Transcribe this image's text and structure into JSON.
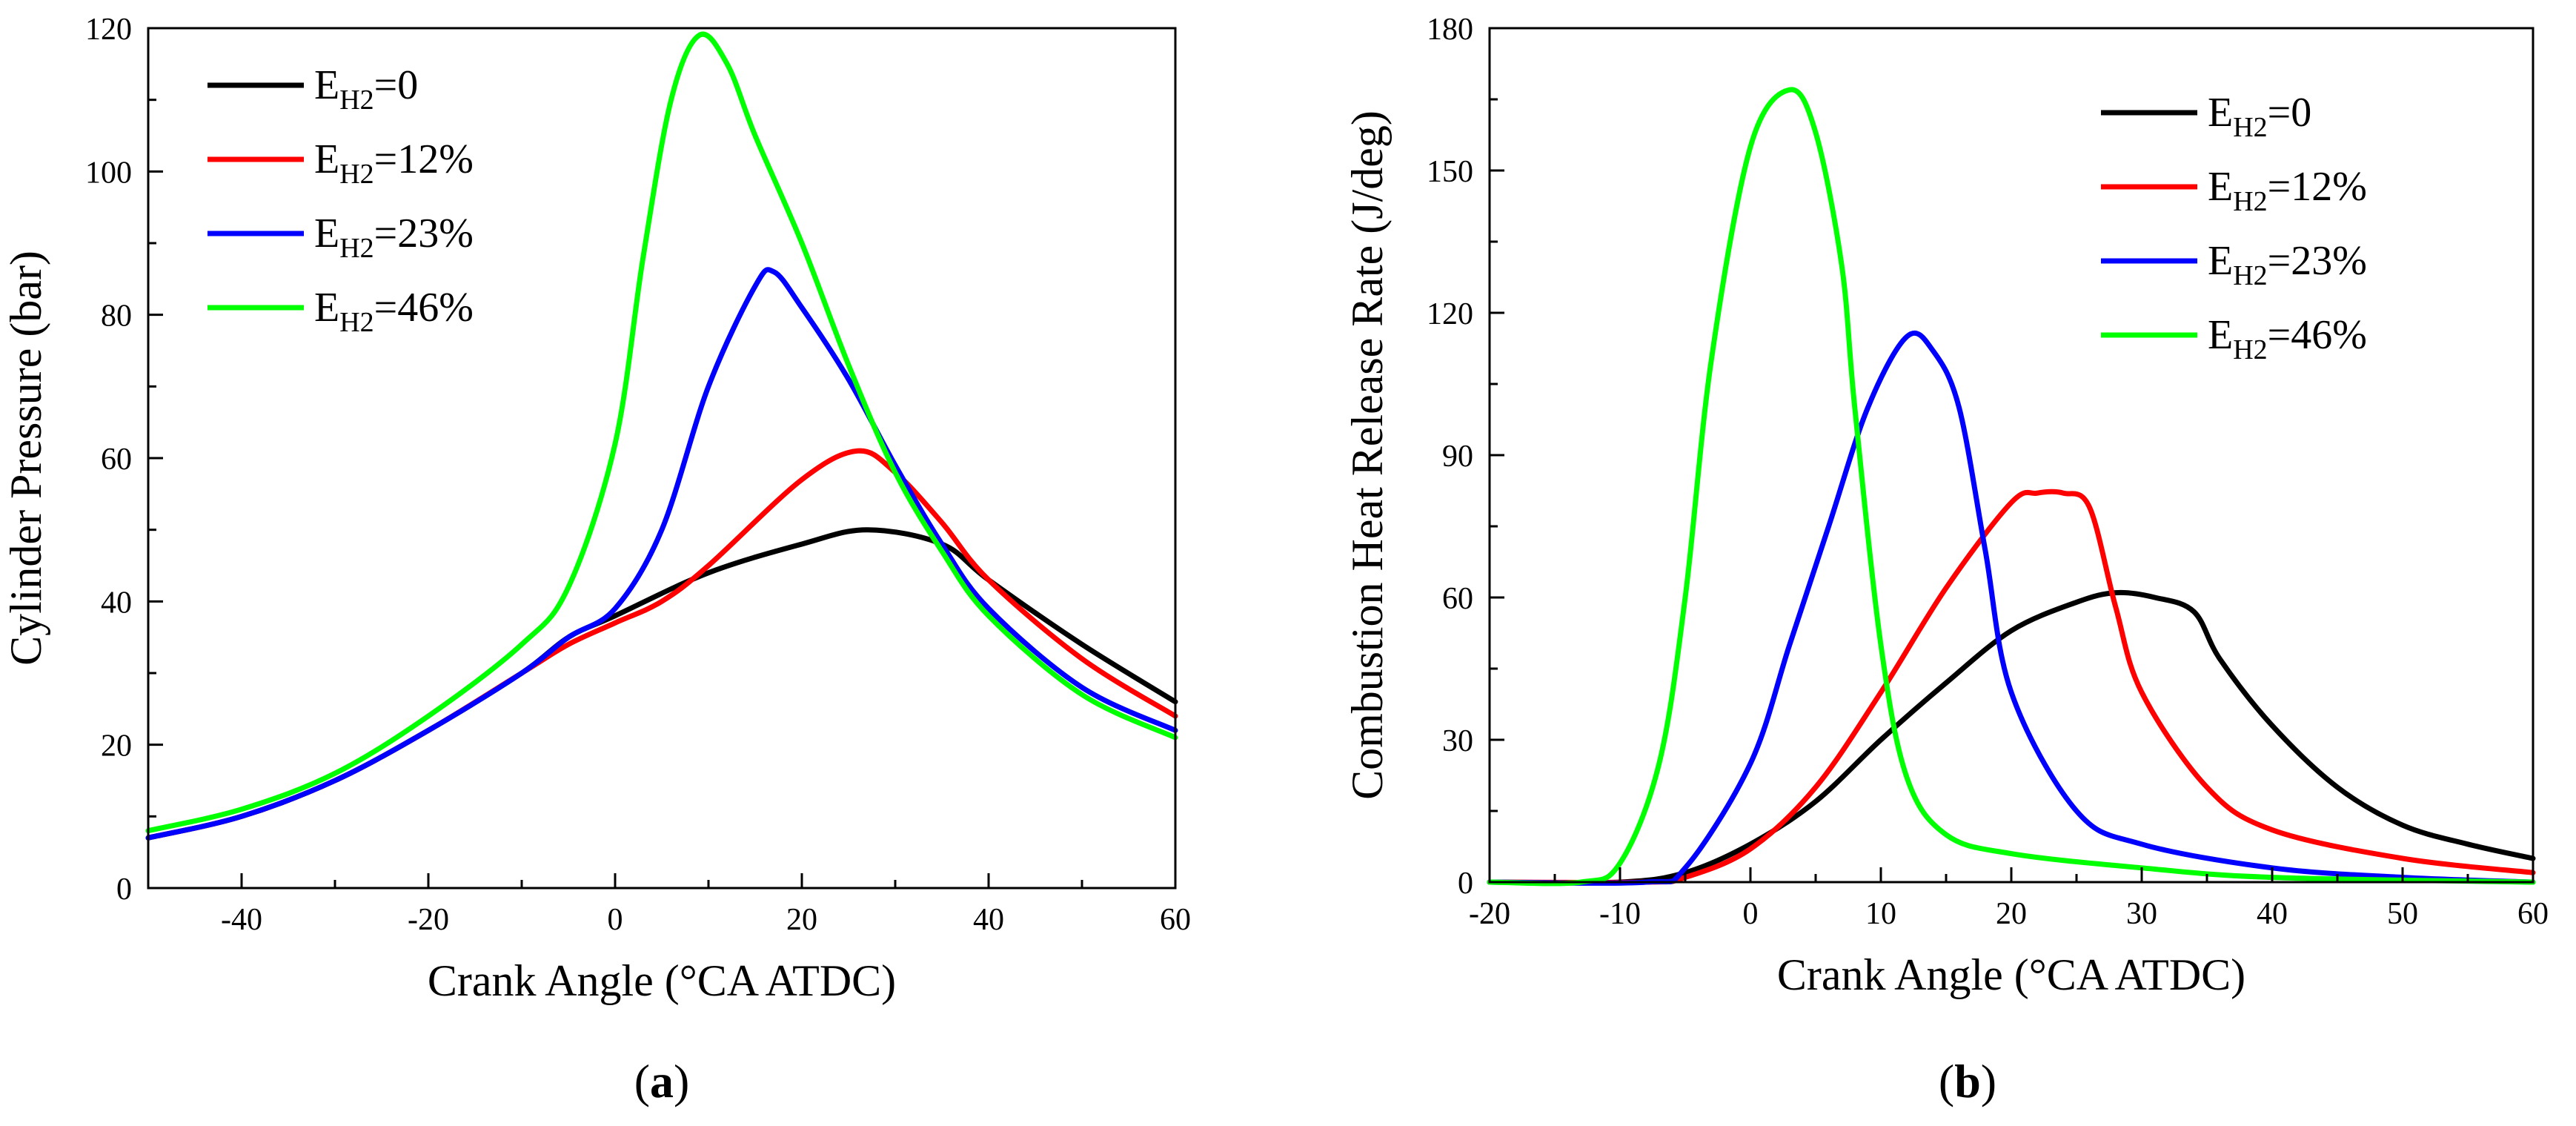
{
  "chart_data": [
    {
      "id": "a",
      "type": "line",
      "panel_label": "a",
      "xlabel": "Crank Angle (°CA ATDC)",
      "ylabel": "Cylinder Pressure (bar)",
      "xlim": [
        -50,
        60
      ],
      "ylim": [
        0,
        120
      ],
      "xticks": [
        -40,
        -20,
        0,
        20,
        40,
        60
      ],
      "yticks": [
        0,
        20,
        40,
        60,
        80,
        100,
        120
      ],
      "legend_position": "top-left",
      "series": [
        {
          "name": "E_H2=0",
          "legend_main": "E",
          "legend_sub": "H2",
          "legend_tail": "=0",
          "color": "#000000",
          "points": [
            [
              -50,
              7
            ],
            [
              -40,
              10
            ],
            [
              -30,
              15
            ],
            [
              -20,
              22
            ],
            [
              -10,
              30
            ],
            [
              -5,
              35
            ],
            [
              0,
              38
            ],
            [
              10,
              44
            ],
            [
              20,
              48
            ],
            [
              27,
              50
            ],
            [
              35,
              48
            ],
            [
              40,
              43
            ],
            [
              50,
              34
            ],
            [
              60,
              26
            ]
          ]
        },
        {
          "name": "E_H2=12%",
          "legend_main": "E",
          "legend_sub": "H2",
          "legend_tail": "=12%",
          "color": "#ff0000",
          "points": [
            [
              -50,
              7
            ],
            [
              -40,
              10
            ],
            [
              -30,
              15
            ],
            [
              -20,
              22
            ],
            [
              -10,
              30
            ],
            [
              -5,
              34
            ],
            [
              0,
              37
            ],
            [
              5,
              40
            ],
            [
              10,
              45
            ],
            [
              20,
              57
            ],
            [
              26,
              61
            ],
            [
              30,
              58
            ],
            [
              35,
              51
            ],
            [
              40,
              43
            ],
            [
              50,
              32
            ],
            [
              60,
              24
            ]
          ]
        },
        {
          "name": "E_H2=23%",
          "legend_main": "E",
          "legend_sub": "H2",
          "legend_tail": "=23%",
          "color": "#0000ff",
          "points": [
            [
              -50,
              7
            ],
            [
              -40,
              10
            ],
            [
              -30,
              15
            ],
            [
              -20,
              22
            ],
            [
              -10,
              30
            ],
            [
              -5,
              35
            ],
            [
              0,
              39
            ],
            [
              5,
              50
            ],
            [
              10,
              70
            ],
            [
              15,
              84
            ],
            [
              17,
              86
            ],
            [
              20,
              81
            ],
            [
              25,
              71
            ],
            [
              30,
              59
            ],
            [
              35,
              48
            ],
            [
              40,
              39
            ],
            [
              50,
              28
            ],
            [
              60,
              22
            ]
          ]
        },
        {
          "name": "E_H2=46%",
          "legend_main": "E",
          "legend_sub": "H2",
          "legend_tail": "=46%",
          "color": "#00ff00",
          "points": [
            [
              -50,
              8
            ],
            [
              -40,
              11
            ],
            [
              -30,
              16
            ],
            [
              -20,
              24
            ],
            [
              -10,
              34
            ],
            [
              -5,
              42
            ],
            [
              0,
              62
            ],
            [
              3,
              88
            ],
            [
              6,
              110
            ],
            [
              9,
              119
            ],
            [
              12,
              115
            ],
            [
              15,
              105
            ],
            [
              20,
              90
            ],
            [
              25,
              73
            ],
            [
              30,
              58
            ],
            [
              35,
              47
            ],
            [
              40,
              38
            ],
            [
              50,
              27
            ],
            [
              60,
              21
            ]
          ]
        }
      ]
    },
    {
      "id": "b",
      "type": "line",
      "panel_label": "b",
      "xlabel": "Crank Angle (°CA ATDC)",
      "ylabel": "Combustion Heat Release Rate (J/deg)",
      "xlim": [
        -20,
        60
      ],
      "ylim": [
        0,
        180
      ],
      "xticks": [
        -20,
        -10,
        0,
        10,
        20,
        30,
        40,
        50,
        60
      ],
      "yticks": [
        0,
        30,
        60,
        90,
        120,
        150,
        180
      ],
      "legend_position": "top-right",
      "series": [
        {
          "name": "E_H2=0",
          "legend_main": "E",
          "legend_sub": "H2",
          "legend_tail": "=0",
          "color": "#000000",
          "points": [
            [
              -20,
              0
            ],
            [
              -10,
              0
            ],
            [
              -5,
              2
            ],
            [
              0,
              8
            ],
            [
              5,
              17
            ],
            [
              10,
              30
            ],
            [
              15,
              42
            ],
            [
              20,
              53
            ],
            [
              25,
              59
            ],
            [
              28,
              61
            ],
            [
              31,
              60
            ],
            [
              34,
              57
            ],
            [
              36,
              47
            ],
            [
              40,
              33
            ],
            [
              45,
              20
            ],
            [
              50,
              12
            ],
            [
              55,
              8
            ],
            [
              60,
              5
            ]
          ]
        },
        {
          "name": "E_H2=12%",
          "legend_main": "E",
          "legend_sub": "H2",
          "legend_tail": "=12%",
          "color": "#ff0000",
          "points": [
            [
              -20,
              0
            ],
            [
              -8,
              0
            ],
            [
              -5,
              1
            ],
            [
              0,
              7
            ],
            [
              5,
              20
            ],
            [
              10,
              40
            ],
            [
              15,
              62
            ],
            [
              20,
              80
            ],
            [
              22,
              82
            ],
            [
              24,
              82
            ],
            [
              26,
              79
            ],
            [
              28,
              58
            ],
            [
              30,
              40
            ],
            [
              35,
              20
            ],
            [
              40,
              11
            ],
            [
              50,
              5
            ],
            [
              60,
              2
            ]
          ]
        },
        {
          "name": "E_H2=23%",
          "legend_main": "E",
          "legend_sub": "H2",
          "legend_tail": "=23%",
          "color": "#0000ff",
          "points": [
            [
              -20,
              0
            ],
            [
              -8,
              0
            ],
            [
              -5,
              3
            ],
            [
              0,
              25
            ],
            [
              3,
              50
            ],
            [
              6,
              75
            ],
            [
              9,
              100
            ],
            [
              12,
              115
            ],
            [
              14,
              112
            ],
            [
              16,
              100
            ],
            [
              18,
              70
            ],
            [
              20,
              40
            ],
            [
              25,
              15
            ],
            [
              30,
              8
            ],
            [
              40,
              3
            ],
            [
              50,
              1
            ],
            [
              60,
              0
            ]
          ]
        },
        {
          "name": "E_H2=46%",
          "legend_main": "E",
          "legend_sub": "H2",
          "legend_tail": "=46%",
          "color": "#00ff00",
          "points": [
            [
              -20,
              0
            ],
            [
              -13,
              0
            ],
            [
              -10,
              4
            ],
            [
              -7,
              25
            ],
            [
              -5,
              60
            ],
            [
              -3,
              110
            ],
            [
              0,
              155
            ],
            [
              3,
              167
            ],
            [
              5,
              158
            ],
            [
              7,
              130
            ],
            [
              8,
              100
            ],
            [
              10,
              50
            ],
            [
              12,
              22
            ],
            [
              15,
              10
            ],
            [
              20,
              6
            ],
            [
              30,
              3
            ],
            [
              40,
              1
            ],
            [
              60,
              0
            ]
          ]
        }
      ]
    }
  ]
}
